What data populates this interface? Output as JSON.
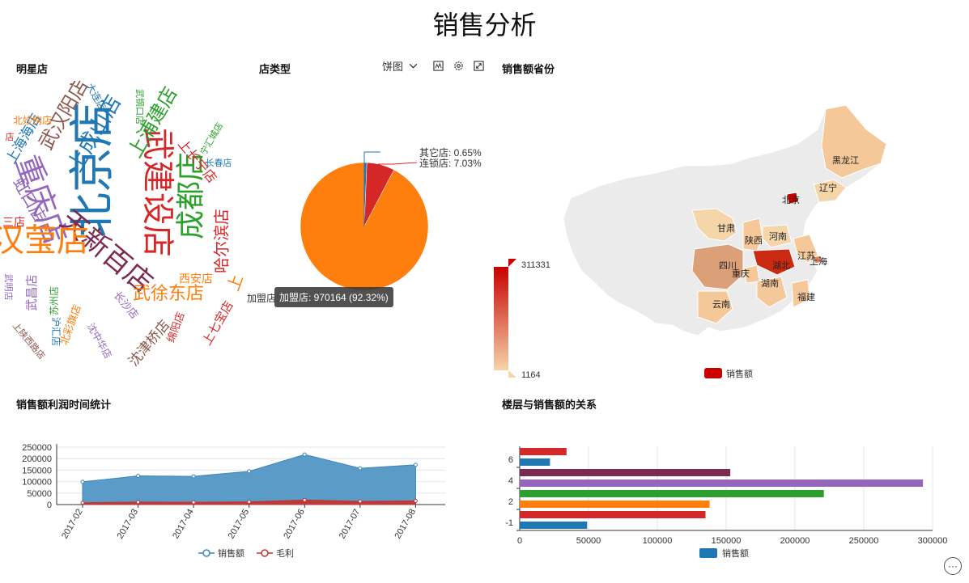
{
  "page": {
    "title": "销售分析"
  },
  "colors": {
    "blue": "#1f77b4",
    "orange": "#ff7f0e",
    "green": "#2ca02c",
    "red": "#d62728",
    "purple": "#9467bd",
    "brown": "#8c564b",
    "pink": "#e377c2",
    "maroon": "#7b2b52",
    "area_fill": "#5a9bc8",
    "line_red": "#c23531",
    "map_high": "#c80000",
    "map_low": "#f5d5aa",
    "map_base": "#ebebeb"
  },
  "wordcloud": {
    "title": "明星店",
    "words": [
      {
        "text": "北京店",
        "color": "#1f77b4"
      },
      {
        "text": "重庆店",
        "color": "#9467bd"
      },
      {
        "text": "武建设店",
        "color": "#d62728"
      },
      {
        "text": "成都店",
        "color": "#2ca02c"
      },
      {
        "text": "天新百店",
        "color": "#7b2b52"
      },
      {
        "text": "汉莹店",
        "color": "#ff7f0e"
      },
      {
        "text": "上成山店",
        "color": "#1f77b4"
      },
      {
        "text": "武汉阳店",
        "color": "#8c564b"
      },
      {
        "text": "上浦建店",
        "color": "#2ca02c"
      },
      {
        "text": "武徐东店",
        "color": "#ff7f0e"
      },
      {
        "text": "哈尔滨店",
        "color": "#d62728"
      },
      {
        "text": "上海海店",
        "color": "#1f77b4"
      },
      {
        "text": "虹口店",
        "color": "#9467bd"
      },
      {
        "text": "沈津桥店",
        "color": "#8c564b"
      },
      {
        "text": "上七宝店",
        "color": "#d62728"
      },
      {
        "text": "上长宁店",
        "color": "#d62728"
      },
      {
        "text": "西安店",
        "color": "#ff7f0e"
      },
      {
        "text": "长沙店",
        "color": "#9467bd"
      },
      {
        "text": "绵阳店",
        "color": "#d62728"
      },
      {
        "text": "北彩旗店",
        "color": "#ff7f0e"
      },
      {
        "text": "沈中华店",
        "color": "#9467bd"
      },
      {
        "text": "上陕西路店",
        "color": "#8c564b"
      },
      {
        "text": "北妙购店",
        "color": "#ff7f0e"
      },
      {
        "text": "大连店",
        "color": "#1f77b4"
      },
      {
        "text": "武钢口店",
        "color": "#2ca02c"
      },
      {
        "text": "宁汇城店",
        "color": "#2ca02c"
      },
      {
        "text": "长春店",
        "color": "#1f77b4"
      },
      {
        "text": "武昌店",
        "color": "#9467bd"
      },
      {
        "text": "三店",
        "color": "#d62728"
      },
      {
        "text": "苏州店",
        "color": "#2ca02c"
      },
      {
        "text": "沪汇店",
        "color": "#1f77b4"
      },
      {
        "text": "武明店",
        "color": "#9467bd"
      },
      {
        "text": "上",
        "color": "#ff7f0e"
      },
      {
        "text": "店",
        "color": "#d62728"
      }
    ]
  },
  "pie_panel": {
    "title": "店类型",
    "toolbar": {
      "chart_type_label": "饼图",
      "icons": [
        "dropdown-arrow-icon",
        "data-view-icon",
        "settings-icon",
        "fullscreen-icon"
      ]
    },
    "tooltip": "加盟店: 970164 (92.32%)",
    "labels": {
      "other": "其它店: 0.65%",
      "chain": "连锁店: 7.03%",
      "franchise_fragment": "加盟店:"
    }
  },
  "map_panel": {
    "title": "销售额省份",
    "visual_max": "311331",
    "visual_min": "1164",
    "legend": "销售额",
    "provinces": [
      "黑龙江",
      "辽宁",
      "北京",
      "甘肃",
      "陕西",
      "河南",
      "江苏",
      "上海",
      "四川",
      "湖北",
      "重庆",
      "湖南",
      "云南",
      "福建"
    ]
  },
  "line_panel": {
    "title": "销售额利润时间统计",
    "legend": [
      "销售额",
      "毛利"
    ]
  },
  "bar_panel": {
    "title": "楼层与销售额的关系",
    "legend": "销售额"
  },
  "chart_data": [
    {
      "type": "pie",
      "title": "店类型",
      "slices": [
        {
          "name": "加盟店",
          "value": 970164,
          "percent": 92.32,
          "color": "#ff7f0e"
        },
        {
          "name": "连锁店",
          "percent": 7.03,
          "color": "#d62728"
        },
        {
          "name": "其它店",
          "percent": 0.65,
          "color": "#1f77b4"
        }
      ]
    },
    {
      "type": "area",
      "title": "销售额利润时间统计",
      "categories": [
        "2017-02",
        "2017-03",
        "2017-04",
        "2017-05",
        "2017-06",
        "2017-07",
        "2017-08"
      ],
      "ylim": [
        0,
        250000
      ],
      "yticks": [
        "0",
        "50000",
        "100000",
        "150000",
        "200000",
        "250000"
      ],
      "series": [
        {
          "name": "销售额",
          "values": [
            99000,
            125000,
            123000,
            145000,
            218000,
            158000,
            173000
          ]
        },
        {
          "name": "毛利",
          "values": [
            8000,
            11000,
            10000,
            12000,
            20000,
            14000,
            16000
          ]
        }
      ]
    },
    {
      "type": "bar",
      "orientation": "horizontal",
      "title": "楼层与销售额的关系",
      "xlim": [
        0,
        300000
      ],
      "xticks": [
        "0",
        "50000",
        "100000",
        "150000",
        "200000",
        "250000",
        "300000"
      ],
      "ytick_labels": [
        "-1",
        "2",
        "4",
        "6"
      ],
      "series_name": "销售额",
      "bars": [
        {
          "value": 49000,
          "color": "#1f77b4"
        },
        {
          "value": 135000,
          "color": "#d62728"
        },
        {
          "value": 138000,
          "color": "#ff7f0e"
        },
        {
          "value": 221000,
          "color": "#2ca02c"
        },
        {
          "value": 293000,
          "color": "#9467bd"
        },
        {
          "value": 153000,
          "color": "#7b2b52"
        },
        {
          "value": 22000,
          "color": "#1f77b4"
        },
        {
          "value": 34000,
          "color": "#d62728"
        }
      ]
    },
    {
      "type": "map",
      "title": "销售额省份",
      "range": [
        1164,
        311331
      ],
      "series_name": "销售额"
    }
  ]
}
